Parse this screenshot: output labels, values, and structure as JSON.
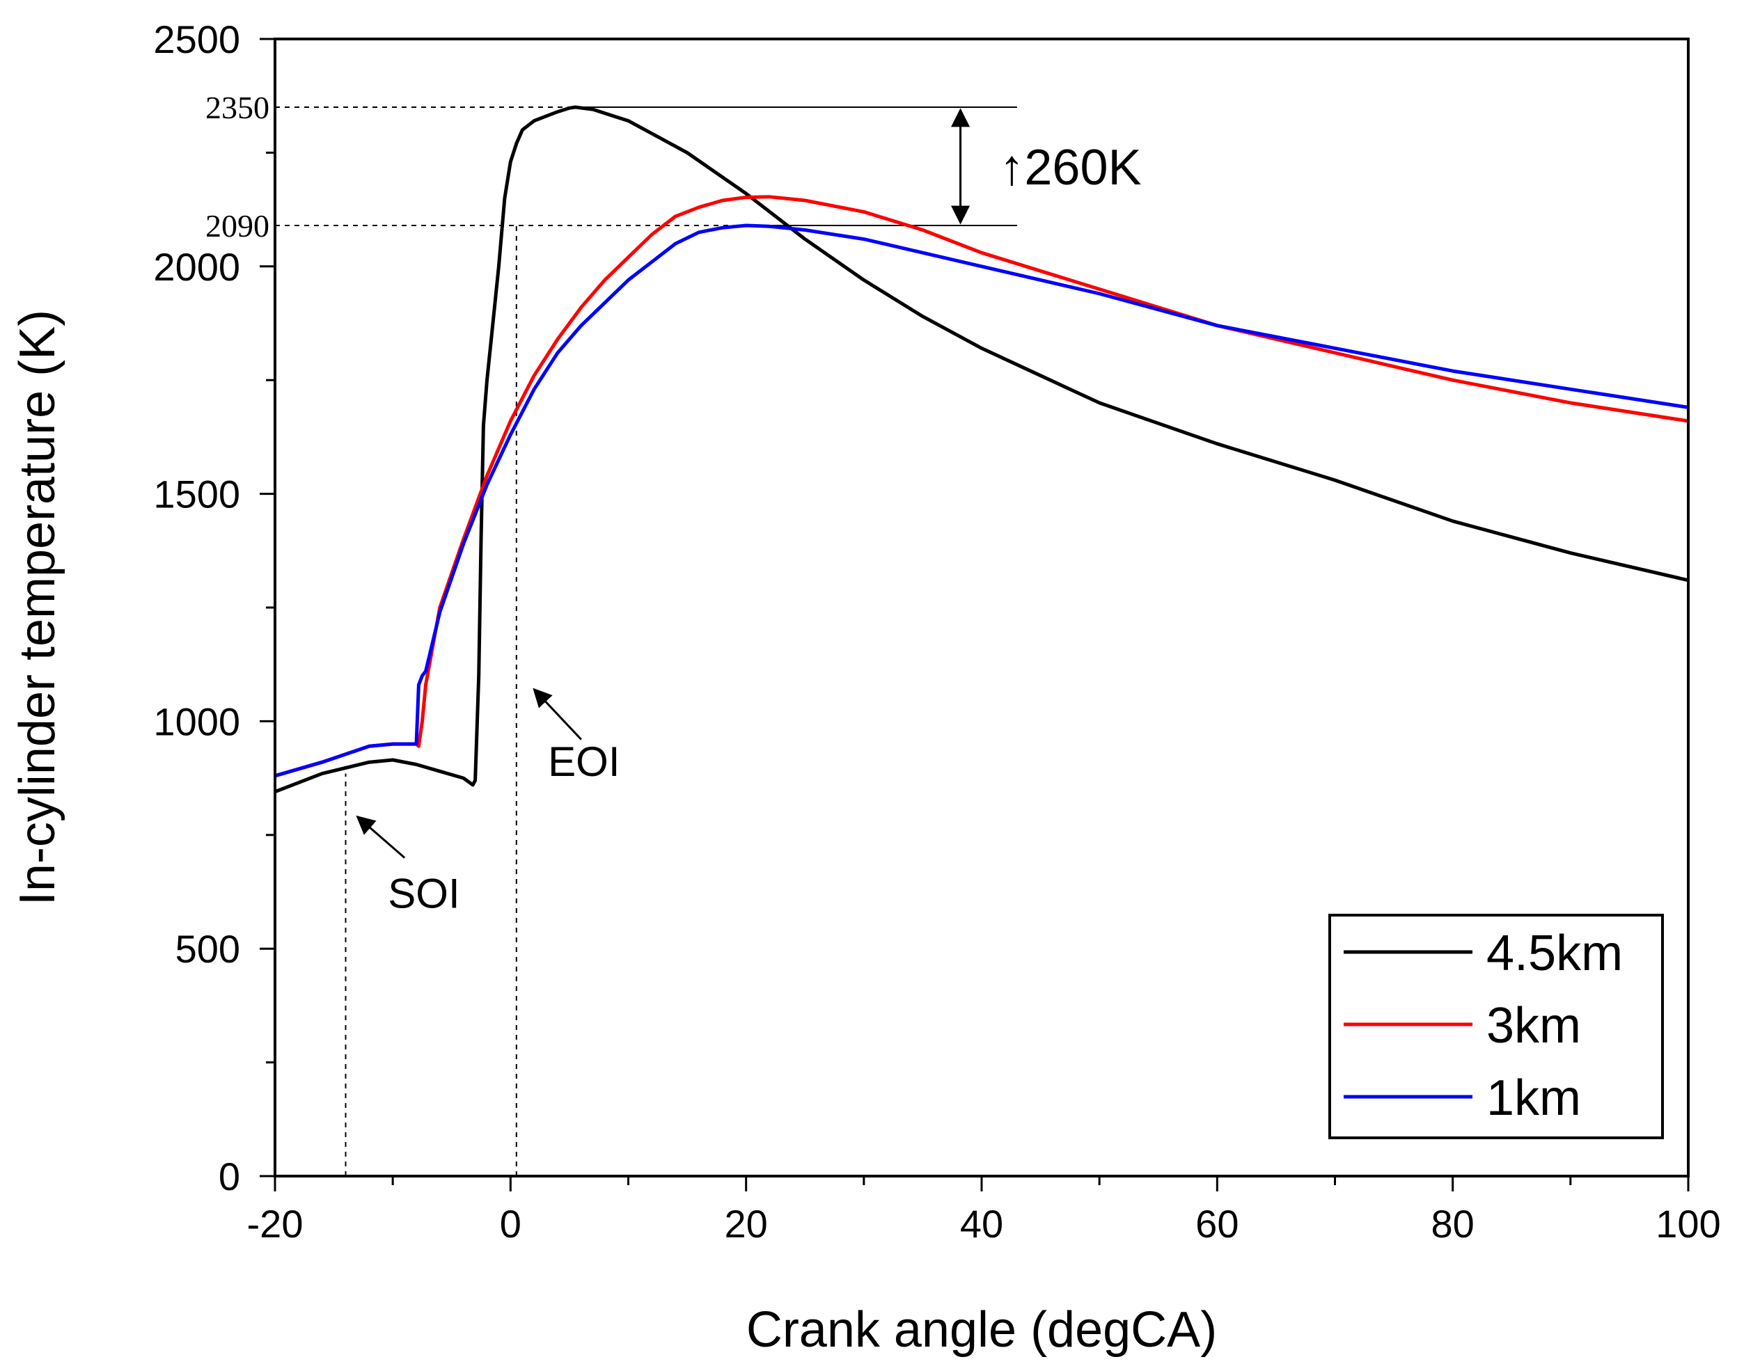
{
  "chart_data": {
    "type": "line",
    "title": "",
    "xlabel": "Crank angle (degCA)",
    "ylabel": "In-cylinder temperature (K)",
    "xlim": [
      -20,
      100
    ],
    "ylim": [
      0,
      2500
    ],
    "xticks": [
      -20,
      0,
      20,
      40,
      60,
      80,
      100
    ],
    "yticks": [
      0,
      500,
      1000,
      1500,
      2000,
      2500
    ],
    "legend_position": "bottom-right",
    "series": [
      {
        "name": "4.5km",
        "color": "#000000",
        "x": [
          -20,
          -16,
          -12,
          -10,
          -8,
          -6,
          -4,
          -3.2,
          -3.0,
          -2.7,
          -2.5,
          -2.3,
          -2.0,
          -1.6,
          -1.0,
          -0.5,
          0,
          0.5,
          1,
          2,
          3,
          4,
          5,
          5.5,
          7,
          10,
          15,
          20,
          25,
          30,
          35,
          40,
          45,
          50,
          60,
          70,
          80,
          90,
          100
        ],
        "y": [
          845,
          885,
          910,
          915,
          905,
          890,
          875,
          860,
          870,
          1100,
          1400,
          1650,
          1750,
          1850,
          2000,
          2150,
          2230,
          2270,
          2300,
          2320,
          2330,
          2340,
          2348,
          2350,
          2345,
          2320,
          2250,
          2160,
          2060,
          1970,
          1890,
          1820,
          1760,
          1700,
          1610,
          1530,
          1440,
          1370,
          1310
        ]
      },
      {
        "name": "3km",
        "color": "#ff0000",
        "x": [
          -20,
          -16,
          -12,
          -10,
          -8,
          -7.8,
          -7.5,
          -7.2,
          -6,
          -4,
          -2,
          0,
          2,
          4,
          6,
          8,
          10,
          12,
          14,
          16,
          18,
          20,
          22,
          25,
          30,
          35,
          40,
          50,
          60,
          70,
          80,
          90,
          100
        ],
        "y": [
          880,
          910,
          945,
          950,
          950,
          945,
          1000,
          1080,
          1250,
          1400,
          1540,
          1660,
          1760,
          1840,
          1910,
          1970,
          2020,
          2070,
          2110,
          2130,
          2145,
          2152,
          2153,
          2145,
          2120,
          2080,
          2030,
          1950,
          1870,
          1810,
          1750,
          1700,
          1660
        ]
      },
      {
        "name": "1km",
        "color": "#0000ff",
        "x": [
          -20,
          -16,
          -12,
          -10,
          -8,
          -7.8,
          -7.5,
          -7.2,
          -6,
          -4,
          -2,
          0,
          2,
          4,
          6,
          8,
          10,
          12,
          14,
          16,
          18,
          20,
          22,
          25,
          30,
          35,
          40,
          50,
          60,
          70,
          80,
          90,
          100
        ],
        "y": [
          880,
          910,
          945,
          950,
          950,
          1080,
          1100,
          1110,
          1240,
          1390,
          1520,
          1630,
          1730,
          1810,
          1870,
          1920,
          1970,
          2010,
          2050,
          2075,
          2085,
          2090,
          2088,
          2080,
          2060,
          2030,
          2000,
          1940,
          1870,
          1820,
          1770,
          1730,
          1690
        ]
      }
    ],
    "reference_lines": [
      {
        "label": "2350",
        "y": 2350,
        "x_from": -20,
        "x_to": 43
      },
      {
        "label": "2090",
        "y": 2090,
        "x_from": -20,
        "x_to": 43
      },
      {
        "label": "SOI",
        "x": -14,
        "y_from": 0,
        "y_to": 885
      },
      {
        "label": "EOI",
        "x": 0.5,
        "y_from": 0,
        "y_to": 2090
      }
    ],
    "annotations": [
      {
        "name": "delta",
        "text": "↑260K",
        "at": [
          41.5,
          2220
        ]
      },
      {
        "name": "eoi",
        "text": "EOI",
        "at": [
          2,
          880
        ],
        "arrow_from": [
          6,
          960
        ],
        "arrow_to": [
          2,
          1070
        ]
      },
      {
        "name": "soi",
        "text": "SOI",
        "at": [
          -11,
          590
        ],
        "arrow_from": [
          -9,
          700
        ],
        "arrow_to": [
          -13,
          790
        ]
      }
    ]
  }
}
